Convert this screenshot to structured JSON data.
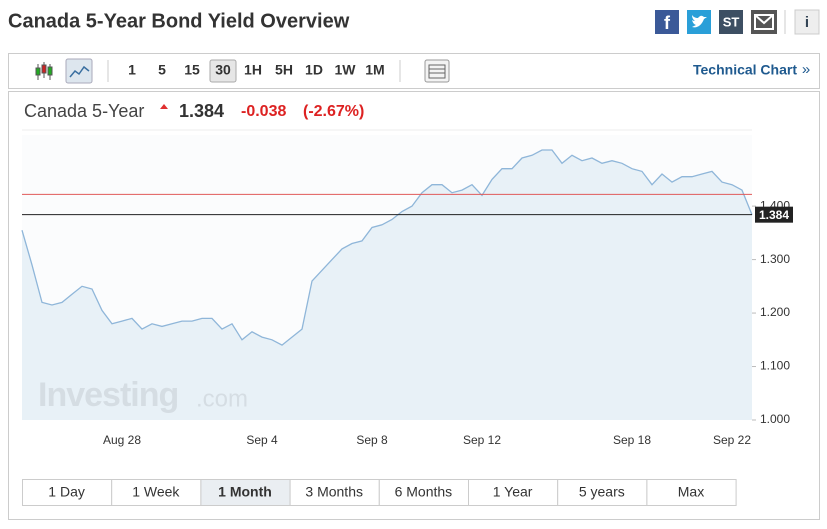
{
  "title": "Canada 5-Year Bond Yield Overview",
  "social": [
    "ST",
    "i"
  ],
  "toolbar": {
    "buttons": [
      "1",
      "5",
      "15",
      "30",
      "1H",
      "5H",
      "1D",
      "1W",
      "1M"
    ],
    "active_index": 3,
    "link": "Technical Chart",
    "link_mark": "»"
  },
  "quote": {
    "name": "Canada 5-Year",
    "price": "1.384",
    "change": "-0.038",
    "change_pct": "(-2.67%)"
  },
  "watermark": {
    "brand": "Investing",
    "suffix": ".com"
  },
  "ranges": {
    "items": [
      "1 Day",
      "1 Week",
      "1 Month",
      "3 Months",
      "6 Months",
      "1 Year",
      "5 years",
      "Max"
    ],
    "active_index": 2
  },
  "chart_data": {
    "type": "area",
    "color": "#8fb6d9",
    "fill": "#e4edf5",
    "categories": [
      null,
      null,
      null,
      null,
      null,
      null,
      null,
      null,
      null,
      null,
      "Aug 28",
      null,
      null,
      null,
      null,
      null,
      null,
      null,
      null,
      null,
      null,
      null,
      null,
      null,
      "Sep 4",
      null,
      null,
      null,
      null,
      null,
      null,
      null,
      null,
      null,
      null,
      "Sep 8",
      null,
      null,
      null,
      null,
      null,
      null,
      null,
      null,
      null,
      null,
      "Sep 12",
      null,
      null,
      null,
      null,
      null,
      null,
      null,
      null,
      null,
      null,
      null,
      null,
      null,
      null,
      "Sep 18",
      null,
      null,
      null,
      null,
      null,
      null,
      null,
      null,
      null,
      "Sep 22",
      null,
      null
    ],
    "values": [
      1.355,
      1.29,
      1.22,
      1.215,
      1.22,
      1.235,
      1.25,
      1.245,
      1.205,
      1.18,
      1.185,
      1.19,
      1.17,
      1.18,
      1.175,
      1.18,
      1.185,
      1.185,
      1.19,
      1.19,
      1.17,
      1.18,
      1.15,
      1.165,
      1.155,
      1.15,
      1.14,
      1.155,
      1.17,
      1.26,
      1.28,
      1.3,
      1.32,
      1.33,
      1.335,
      1.36,
      1.365,
      1.375,
      1.39,
      1.4,
      1.425,
      1.44,
      1.44,
      1.425,
      1.43,
      1.44,
      1.42,
      1.45,
      1.47,
      1.47,
      1.49,
      1.495,
      1.505,
      1.505,
      1.48,
      1.495,
      1.485,
      1.49,
      1.48,
      1.485,
      1.48,
      1.47,
      1.465,
      1.44,
      1.46,
      1.445,
      1.455,
      1.455,
      1.46,
      1.465,
      1.445,
      1.44,
      1.43,
      1.384
    ],
    "ylim": [
      1.0,
      1.533
    ],
    "yticks": [
      {
        "value": 1.0,
        "label": "1.000"
      },
      {
        "value": 1.1,
        "label": "1.100"
      },
      {
        "value": 1.2,
        "label": "1.200"
      },
      {
        "value": 1.3,
        "label": "1.300"
      },
      {
        "value": 1.4,
        "label": "1.400"
      }
    ],
    "prev_close": {
      "value": 1.422,
      "color": "#e05a5a"
    },
    "last": {
      "value": 1.384,
      "label": "1.384",
      "color": "#222"
    }
  }
}
